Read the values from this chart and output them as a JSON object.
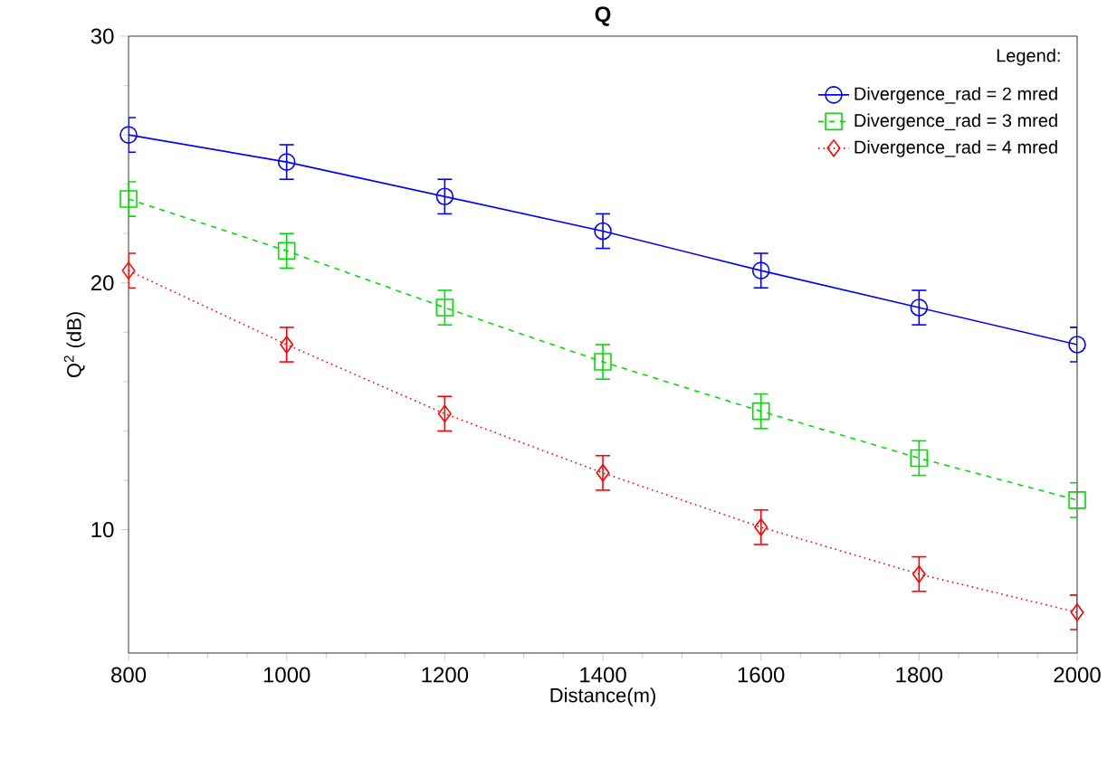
{
  "chart_data": {
    "type": "line",
    "title": "Q",
    "xlabel": "Distance(m)",
    "ylabel": "Q$^{2}$ (dB)",
    "legend_title": "Legend:",
    "legend": "top right",
    "grid": false,
    "x": [
      800,
      1000,
      1200,
      1400,
      1600,
      1800,
      2000
    ],
    "xlim": [
      800,
      2000
    ],
    "xticks": [
      800,
      1000,
      1200,
      1400,
      1600,
      1800,
      2000
    ],
    "ylim": [
      5,
      30
    ],
    "yticks": [
      10,
      20,
      30
    ],
    "series": [
      {
        "name": "Divergence_rad = 2 mred",
        "color": "#0000ff",
        "marker": "circle",
        "line_style": "solid",
        "values": [
          26.0,
          24.9,
          23.5,
          22.1,
          20.5,
          19.0,
          17.5
        ],
        "errors": [
          0.7,
          0.7,
          0.7,
          0.7,
          0.7,
          0.7,
          0.7
        ]
      },
      {
        "name": "Divergence_rad = 3 mred",
        "color": "#00dd00",
        "marker": "square",
        "line_style": "dashed",
        "values": [
          23.4,
          21.3,
          19.0,
          16.8,
          14.8,
          12.9,
          11.2
        ],
        "errors": [
          0.7,
          0.7,
          0.7,
          0.7,
          0.7,
          0.7,
          0.7
        ]
      },
      {
        "name": "Divergence_rad = 4 mred",
        "color": "#ff0000",
        "marker": "diamond",
        "line_style": "dotted",
        "values": [
          20.5,
          17.5,
          14.7,
          12.3,
          10.1,
          8.2,
          6.65
        ],
        "errors": [
          0.7,
          0.7,
          0.7,
          0.7,
          0.7,
          0.7,
          0.7
        ]
      }
    ]
  }
}
